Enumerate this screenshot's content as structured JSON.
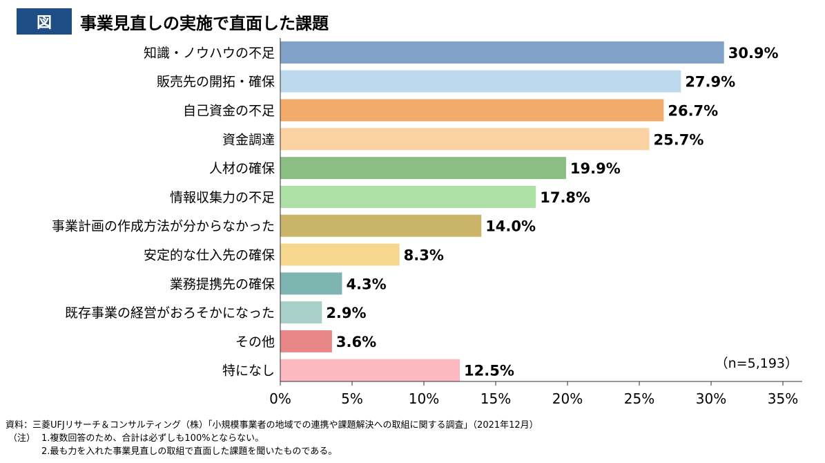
{
  "header": {
    "badge": "図",
    "title": "事業見直しの実施で直面した課題"
  },
  "chart_data": {
    "type": "bar",
    "orientation": "horizontal",
    "categories": [
      "知識・ノウハウの不足",
      "販売先の開拓・確保",
      "自己資金の不足",
      "資金調達",
      "人材の確保",
      "情報収集力の不足",
      "事業計画の作成方法が分からなかった",
      "安定的な仕入先の確保",
      "業務提携先の確保",
      "既存事業の経営がおろそかになった",
      "その他",
      "特になし"
    ],
    "values": [
      30.9,
      27.9,
      26.7,
      25.7,
      19.9,
      17.8,
      14.0,
      8.3,
      4.3,
      2.9,
      3.6,
      12.5
    ],
    "value_labels": [
      "30.9%",
      "27.9%",
      "26.7%",
      "25.7%",
      "19.9%",
      "17.8%",
      "14.0%",
      "8.3%",
      "4.3%",
      "2.9%",
      "3.6%",
      "12.5%"
    ],
    "colors": [
      "#7fa2c6",
      "#bcd9ee",
      "#f3ab6c",
      "#fbd2a2",
      "#8abe82",
      "#ade1a5",
      "#c9b46a",
      "#f5d88e",
      "#7fb5b0",
      "#a9cfc9",
      "#e88787",
      "#fcb9bf"
    ],
    "xlim": [
      0,
      35
    ],
    "xticks": [
      "0%",
      "5%",
      "10%",
      "15%",
      "20%",
      "25%",
      "30%",
      "35%"
    ],
    "annotation": "（n=5,193）",
    "grid": false
  },
  "footer": {
    "source": "資料：三菱UFJリサーチ＆コンサルティング（株）「小規模事業者の地域での連携や課題解決への取組に関する調査」（2021年12月）",
    "note_label": "（注）",
    "note1": "1.複数回答のため、合計は必ずしも100%とならない。",
    "note2": "2.最も力を入れた事業見直しの取組で直面した課題を聞いたものである。"
  }
}
